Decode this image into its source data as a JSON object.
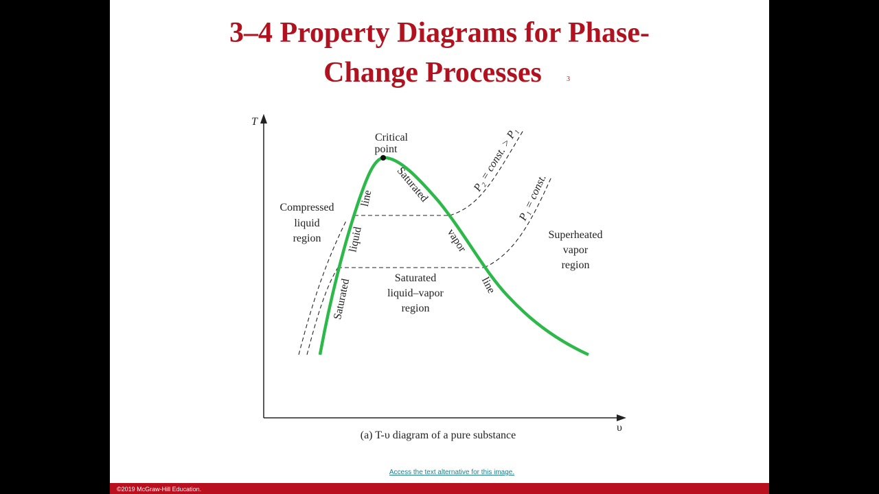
{
  "slide": {
    "title_lines": [
      "3–4 Property Diagrams for Phase-",
      "Change Processes"
    ],
    "slide_number": "3",
    "diagram": {
      "y_axis_label": "T",
      "x_axis_label": "υ",
      "critical_point": [
        "Critical",
        "point"
      ],
      "compressed_region": [
        "Compressed",
        "liquid",
        "region"
      ],
      "superheated_region": [
        "Superheated",
        "vapor",
        "region"
      ],
      "mixture_region": [
        "Saturated",
        "liquid–vapor",
        "region"
      ],
      "liquid_line": [
        "Saturated",
        "liquid",
        "line"
      ],
      "vapor_line": [
        "Saturated",
        "vapor",
        "line"
      ],
      "isobar_p2": "P₂ = const. > P₁",
      "isobar_p1": "P₁ = const.",
      "caption": "(a) T-υ diagram of a pure substance"
    },
    "link": "Access the text alternative for this image.",
    "copyright": "©2019 McGraw-Hill Education."
  }
}
